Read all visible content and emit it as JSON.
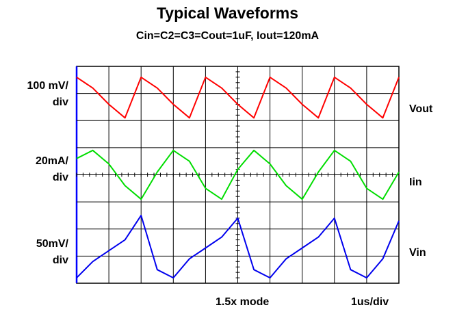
{
  "title": "Typical Waveforms",
  "subtitle": "Cin=C2=C3=Cout=1uF, Iout=120mA",
  "scale_labels": {
    "vout": [
      "100 mV/",
      "div"
    ],
    "iin": [
      "20mA/",
      "div"
    ],
    "vin": [
      "50mV/",
      "div"
    ]
  },
  "trace_labels": {
    "vout": "Vout",
    "iin": "Iin",
    "vin": "Vin"
  },
  "footer": {
    "mode": "1.5x mode",
    "timebase": "1us/div"
  },
  "colors": {
    "vout": "#ff0000",
    "iin": "#00dd00",
    "vin": "#0000ee",
    "grid": "#000000",
    "frame_left": "#0000ff"
  },
  "chart_data": {
    "type": "line",
    "title": "Typical Waveforms",
    "subtitle": "Cin=C2=C3=Cout=1uF, Iout=120mA",
    "xlabel": "1us/div",
    "x_divisions": 10,
    "y_divisions": 8,
    "grid": true,
    "x": [
      0.0,
      0.5,
      1.0,
      1.5,
      2.0,
      2.5,
      3.0,
      3.5,
      4.0,
      4.5,
      5.0,
      5.5,
      6.0,
      6.5,
      7.0,
      7.5,
      8.0,
      8.5,
      9.0,
      9.5,
      10.0
    ],
    "series": [
      {
        "name": "Vout",
        "unit_per_div": "100 mV/div",
        "color": "#ff0000",
        "y": [
          7.6,
          7.2,
          6.6,
          6.1,
          7.6,
          7.2,
          6.6,
          6.1,
          7.6,
          7.2,
          6.6,
          6.1,
          7.6,
          7.2,
          6.6,
          6.1,
          7.6,
          7.2,
          6.6,
          6.1,
          7.6
        ]
      },
      {
        "name": "Iin",
        "unit_per_div": "20mA/div",
        "color": "#00dd00",
        "y": [
          4.6,
          4.9,
          4.4,
          3.6,
          3.1,
          4.1,
          4.9,
          4.5,
          3.5,
          3.1,
          4.2,
          4.9,
          4.4,
          3.6,
          3.1,
          4.1,
          4.9,
          4.5,
          3.5,
          3.1,
          4.1
        ]
      },
      {
        "name": "Vin",
        "unit_per_div": "50mV/div",
        "color": "#0000ee",
        "y": [
          0.2,
          0.8,
          1.2,
          1.6,
          2.5,
          0.5,
          0.2,
          0.9,
          1.3,
          1.7,
          2.4,
          0.5,
          0.2,
          0.9,
          1.3,
          1.7,
          2.4,
          0.5,
          0.2,
          0.9,
          2.3
        ]
      }
    ]
  }
}
